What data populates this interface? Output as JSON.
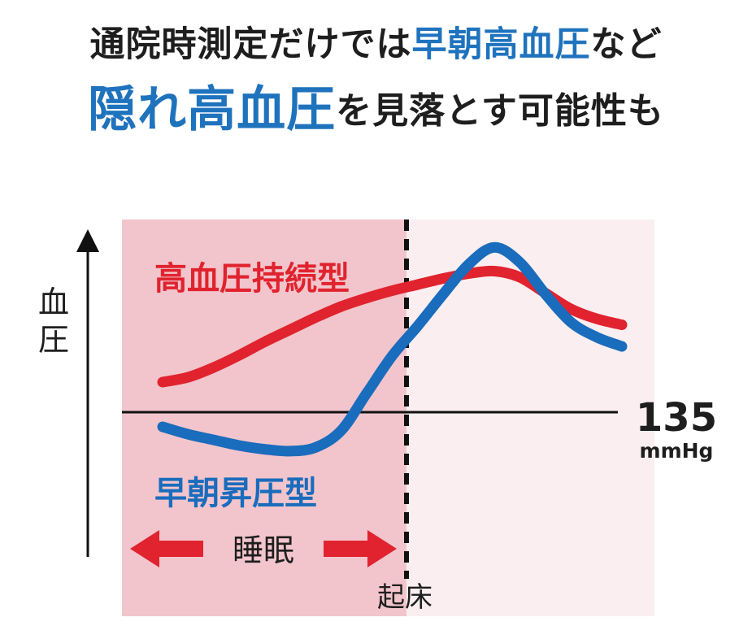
{
  "headline": {
    "line1_prefix": "通院時測定だけでは",
    "line1_highlight": "早朝高血圧",
    "line1_suffix": "など",
    "line2_highlight": "隠れ高血圧",
    "line2_suffix": "を見落とす可能性も",
    "colors": {
      "text": "#1e1e1e",
      "highlight": "#1f73bd"
    }
  },
  "chart_data": {
    "type": "line",
    "ylabel": "血圧",
    "xlabel": "",
    "grid": false,
    "reference_line": {
      "value": "135",
      "unit": "mmHg"
    },
    "regions": [
      {
        "label": "睡眠",
        "color": "#f2c5cc",
        "span": "sleep"
      },
      {
        "label": "",
        "color": "#fbeef0",
        "span": "after waking"
      }
    ],
    "wake_marker": {
      "label": "起床",
      "style": "dashed"
    },
    "series": [
      {
        "name": "高血圧持続型",
        "color": "#e0232e",
        "values": [
          0.0,
          0.04,
          0.12,
          0.22,
          0.33,
          0.43,
          0.53,
          0.62,
          0.69,
          0.75,
          0.8,
          0.85,
          0.89,
          0.91,
          0.86,
          0.73,
          0.6,
          0.52,
          0.47
        ]
      },
      {
        "name": "早朝昇圧型",
        "color": "#1a6cbc",
        "values": [
          0.0,
          -0.04,
          -0.07,
          -0.1,
          -0.12,
          -0.13,
          -0.11,
          -0.02,
          0.18,
          0.38,
          0.54,
          0.71,
          0.87,
          0.96,
          0.88,
          0.71,
          0.56,
          0.48,
          0.43
        ]
      }
    ]
  }
}
